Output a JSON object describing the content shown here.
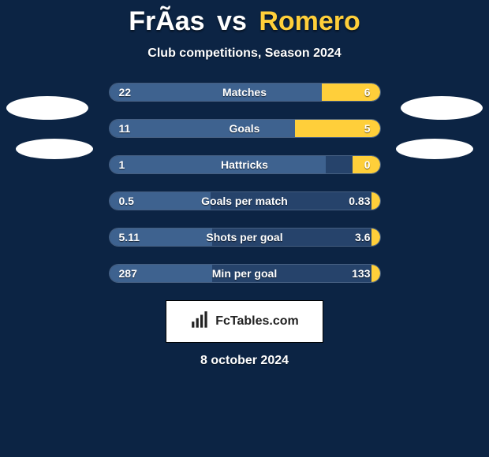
{
  "title": {
    "player1": "FrÃ­as",
    "vs": "vs",
    "player2": "Romero"
  },
  "subtitle": "Club competitions, Season 2024",
  "colors": {
    "bg": "#0c2444",
    "row_bg": "#26436b",
    "left_fill": "#3e628f",
    "right_fill": "#ffcf3a",
    "title_p2": "#ffcf3a"
  },
  "rows": [
    {
      "label": "Matches",
      "left": "22",
      "right": "6",
      "left_pct": 78.6,
      "right_pct": 21.4
    },
    {
      "label": "Goals",
      "left": "11",
      "right": "5",
      "left_pct": 68.8,
      "right_pct": 31.2
    },
    {
      "label": "Hattricks",
      "left": "1",
      "right": "0",
      "left_pct": 80.0,
      "right_pct": 10.0
    },
    {
      "label": "Goals per match",
      "left": "0.5",
      "right": "0.83",
      "left_pct": 37.6,
      "right_pct": 3.0
    },
    {
      "label": "Shots per goal",
      "left": "5.11",
      "right": "3.6",
      "left_pct": 38.0,
      "right_pct": 3.0
    },
    {
      "label": "Min per goal",
      "left": "287",
      "right": "133",
      "left_pct": 38.0,
      "right_pct": 3.0
    }
  ],
  "badge": {
    "text": "FcTables.com"
  },
  "date": "8 october 2024"
}
